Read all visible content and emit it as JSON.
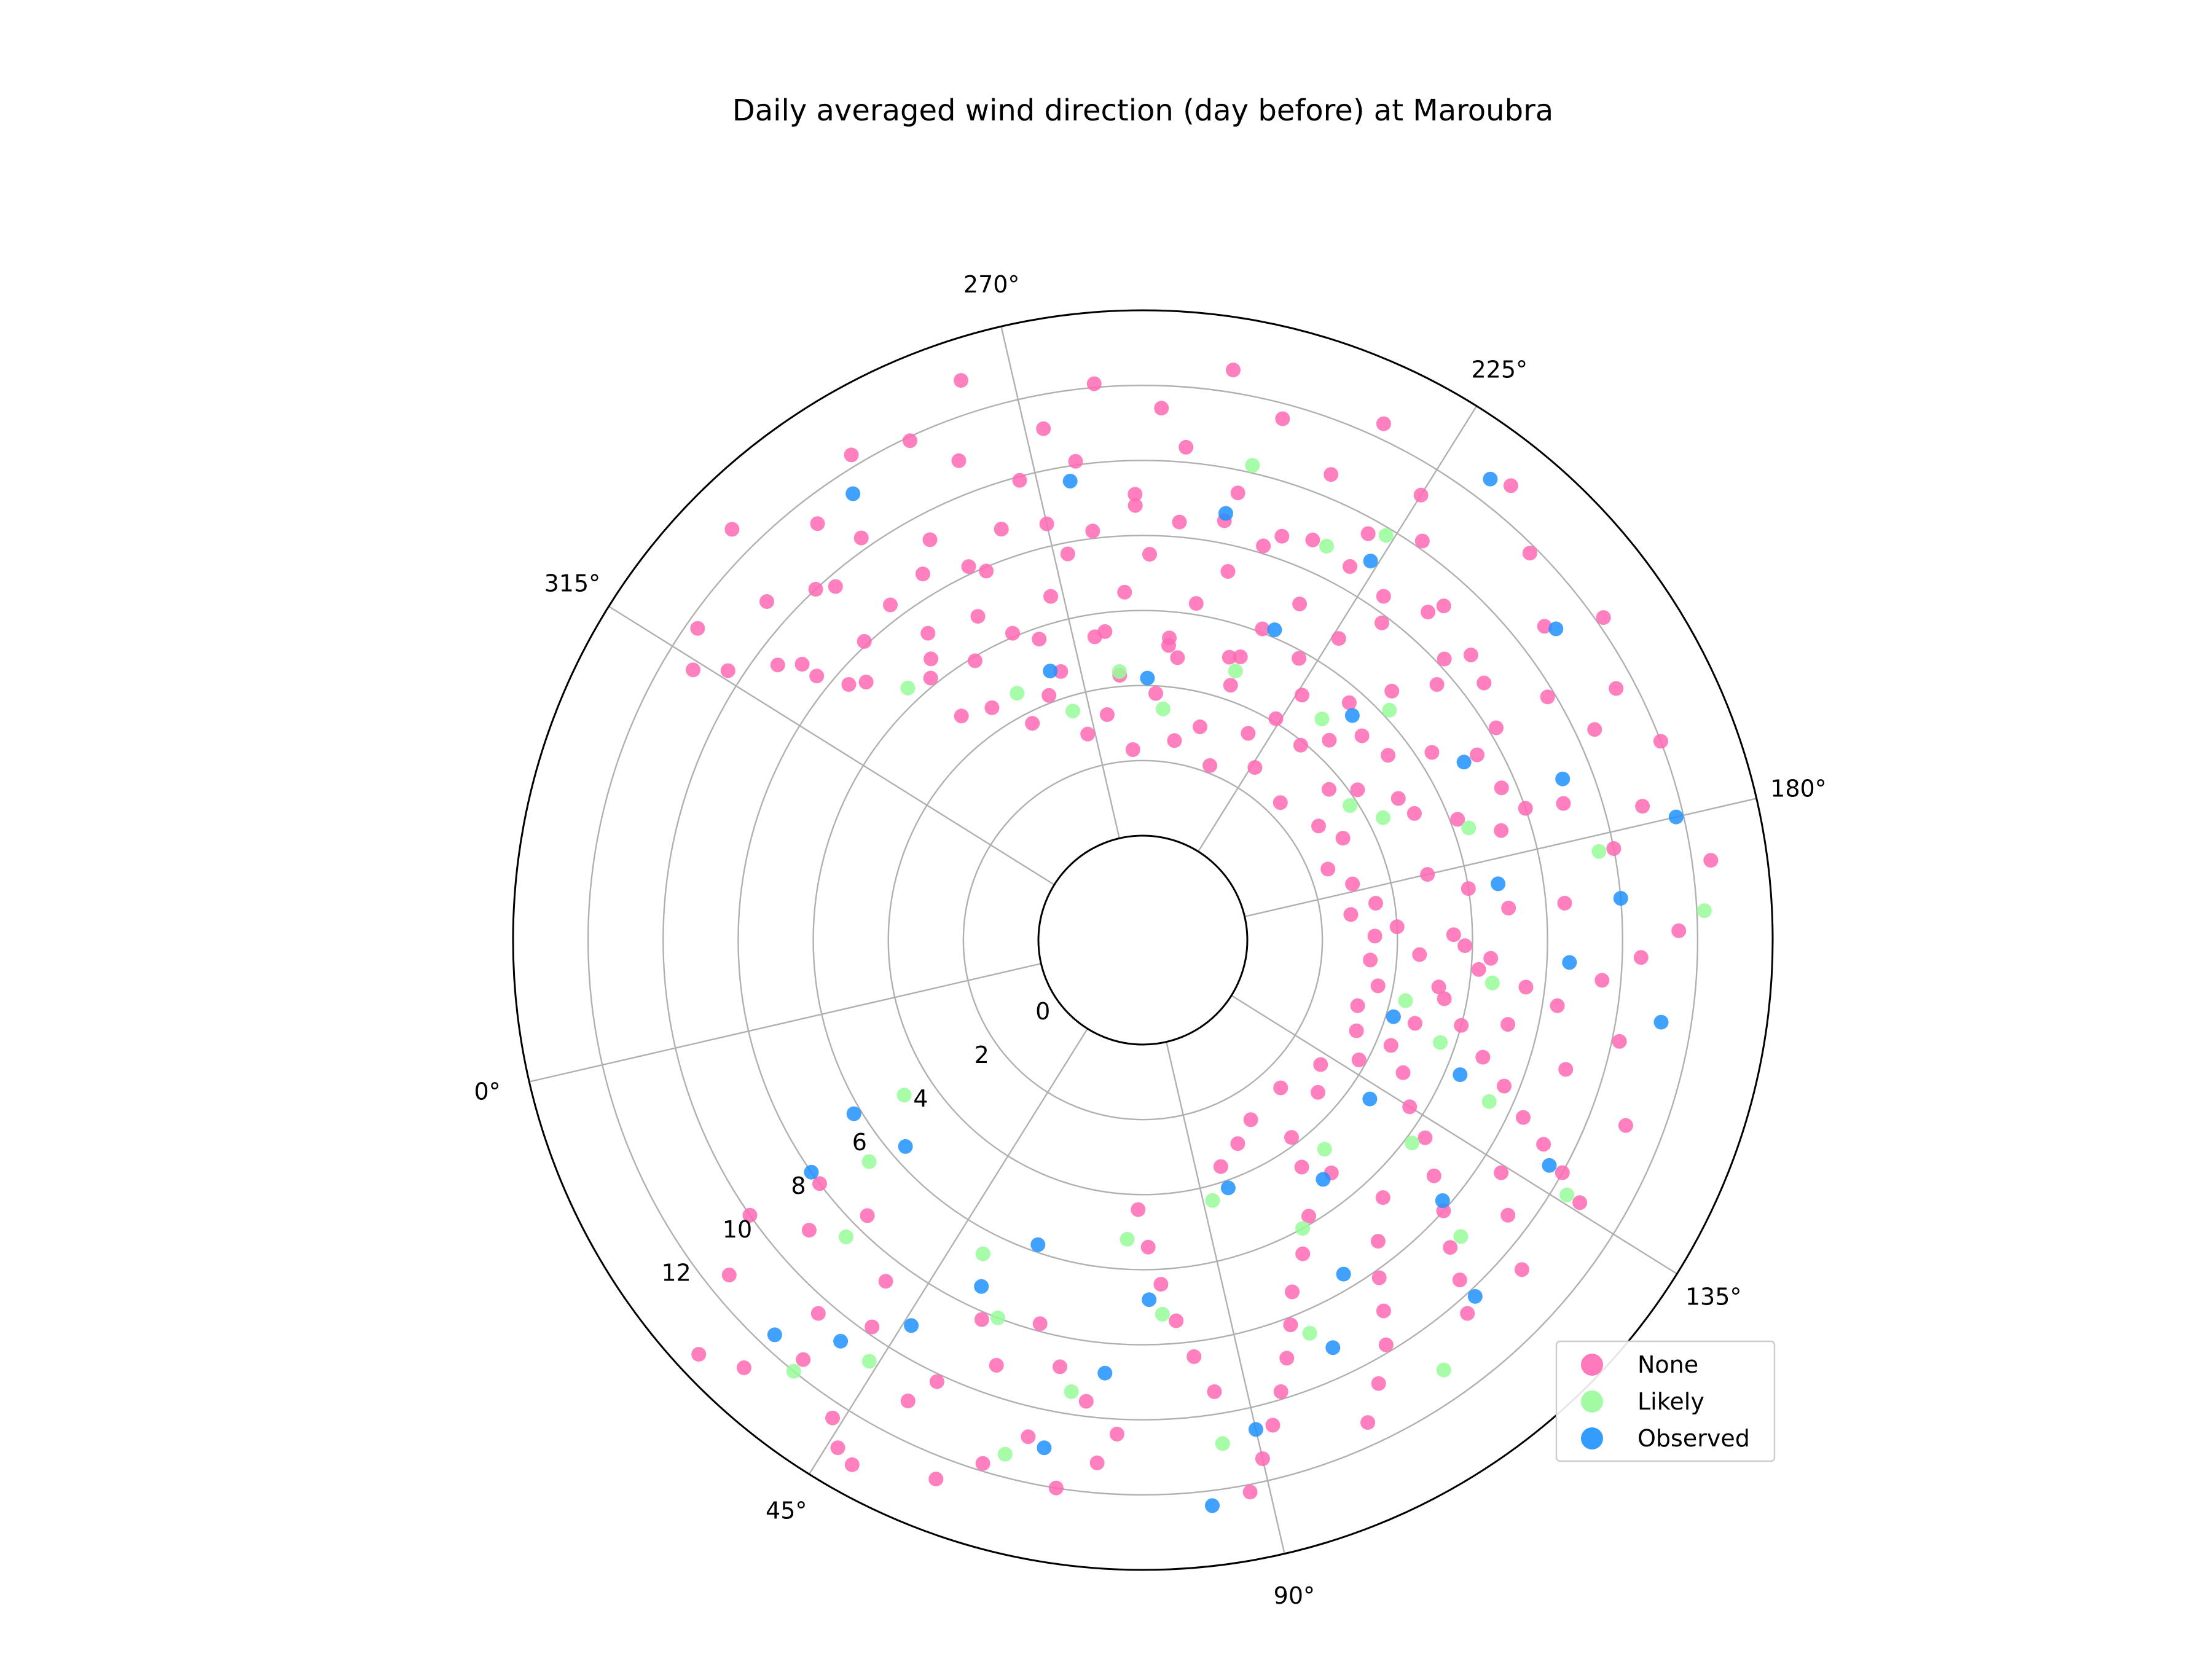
{
  "chart_data": {
    "type": "scatter",
    "projection": "polar",
    "title": "Daily averaged wind direction (day before) at Maroubra",
    "theta_ticks": [
      "0°",
      "45°",
      "90°",
      "135°",
      "180°",
      "225°",
      "270°",
      "315°"
    ],
    "theta_tick_values": [
      0,
      45,
      90,
      135,
      180,
      225,
      270,
      315
    ],
    "theta_zero_screen_angle": 193,
    "theta_direction": "counterclockwise",
    "r_ticks": [
      "0",
      "2",
      "4",
      "6",
      "8",
      "10",
      "12"
    ],
    "r_tick_values": [
      0,
      2,
      4,
      6,
      8,
      10,
      12
    ],
    "r_origin": -2.5,
    "rlim": [
      0,
      14
    ],
    "grid": true,
    "legend_position": "lower-right",
    "series": [
      {
        "name": "None",
        "color": "#ff69b4",
        "points": [
          [
            162,
            9.5
          ],
          [
            165,
            10.5
          ],
          [
            168,
            11.5
          ],
          [
            172,
            8.5
          ],
          [
            175,
            12.5
          ],
          [
            178,
            10
          ],
          [
            182,
            11
          ],
          [
            185,
            9
          ],
          [
            188,
            12
          ],
          [
            192,
            10.5
          ],
          [
            195,
            11.5
          ],
          [
            198,
            9.8
          ],
          [
            202,
            12.2
          ],
          [
            205,
            10.8
          ],
          [
            208,
            8.8
          ],
          [
            212,
            11.8
          ],
          [
            215,
            9.2
          ],
          [
            218,
            12.8
          ],
          [
            222,
            10.2
          ],
          [
            225,
            11.2
          ],
          [
            228,
            9.6
          ],
          [
            232,
            12.4
          ],
          [
            235,
            10.6
          ],
          [
            238,
            8.6
          ],
          [
            242,
            11.6
          ],
          [
            245,
            9.4
          ],
          [
            248,
            12.6
          ],
          [
            252,
            10.4
          ],
          [
            255,
            11.4
          ],
          [
            258,
            9.1
          ],
          [
            262,
            12.1
          ],
          [
            265,
            10.1
          ],
          [
            268,
            11.1
          ],
          [
            272,
            9.9
          ],
          [
            275,
            12.9
          ],
          [
            278,
            10.9
          ],
          [
            282,
            11.9
          ],
          [
            285,
            9.3
          ],
          [
            288,
            12.3
          ],
          [
            292,
            10.3
          ],
          [
            295,
            11.3
          ],
          [
            298,
            9.7
          ],
          [
            302,
            12.7
          ],
          [
            305,
            10.7
          ],
          [
            308,
            8.9
          ],
          [
            312,
            11.7
          ],
          [
            160,
            7.5
          ],
          [
            164,
            6.5
          ],
          [
            168,
            5.5
          ],
          [
            172,
            7
          ],
          [
            176,
            6
          ],
          [
            180,
            5
          ],
          [
            184,
            7.2
          ],
          [
            188,
            6.2
          ],
          [
            192,
            5.2
          ],
          [
            196,
            7.4
          ],
          [
            200,
            6.4
          ],
          [
            204,
            5.4
          ],
          [
            208,
            7.6
          ],
          [
            212,
            6.6
          ],
          [
            216,
            5.6
          ],
          [
            220,
            7.8
          ],
          [
            224,
            6.8
          ],
          [
            228,
            5.8
          ],
          [
            232,
            7.1
          ],
          [
            236,
            6.1
          ],
          [
            240,
            5.1
          ],
          [
            244,
            7.3
          ],
          [
            248,
            6.3
          ],
          [
            252,
            5.3
          ],
          [
            256,
            7.5
          ],
          [
            260,
            6.5
          ],
          [
            264,
            5.5
          ],
          [
            268,
            7.7
          ],
          [
            272,
            6.7
          ],
          [
            276,
            5.7
          ],
          [
            280,
            7.9
          ],
          [
            284,
            6.9
          ],
          [
            288,
            5.9
          ],
          [
            292,
            7.2
          ],
          [
            296,
            6.2
          ],
          [
            300,
            8.1
          ],
          [
            304,
            7.3
          ],
          [
            308,
            8.4
          ],
          [
            176,
            3.5
          ],
          [
            182,
            3
          ],
          [
            188,
            2.5
          ],
          [
            194,
            3.2
          ],
          [
            200,
            2.8
          ],
          [
            206,
            3.6
          ],
          [
            212,
            2.4
          ],
          [
            218,
            3.9
          ],
          [
            224,
            2.7
          ],
          [
            230,
            3.4
          ],
          [
            236,
            2.2
          ],
          [
            242,
            3.1
          ],
          [
            248,
            2.6
          ],
          [
            254,
            3.8
          ],
          [
            260,
            2.3
          ],
          [
            266,
            3.3
          ],
          [
            272,
            2.9
          ],
          [
            278,
            4.2
          ],
          [
            284,
            3.7
          ],
          [
            290,
            4.6
          ],
          [
            296,
            4.9
          ],
          [
            202,
            4.2
          ],
          [
            214,
            4.5
          ],
          [
            226,
            4.1
          ],
          [
            238,
            4.4
          ],
          [
            250,
            4.8
          ],
          [
            262,
            4.3
          ],
          [
            274,
            4.7
          ],
          [
            170,
            4
          ],
          [
            164,
            4.6
          ],
          [
            158,
            5.2
          ],
          [
            152,
            6
          ],
          [
            148,
            6.8
          ],
          [
            145,
            7.6
          ],
          [
            142,
            8.4
          ],
          [
            140,
            9.2
          ],
          [
            138,
            10
          ],
          [
            136,
            10.8
          ],
          [
            150,
            9
          ],
          [
            155,
            10.2
          ],
          [
            146,
            11
          ],
          [
            158,
            8.4
          ],
          [
            154,
            7.2
          ],
          [
            162,
            6.2
          ],
          [
            166,
            5.8
          ],
          [
            156,
            5.4
          ],
          [
            150,
            4.8
          ],
          [
            144,
            4.4
          ],
          [
            140,
            5
          ],
          [
            135,
            5.6
          ],
          [
            132,
            6.4
          ],
          [
            128,
            7.2
          ],
          [
            125,
            8
          ],
          [
            122,
            8.8
          ],
          [
            120,
            9.6
          ],
          [
            118,
            10.4
          ],
          [
            130,
            9.4
          ],
          [
            126,
            10.6
          ],
          [
            134,
            8.6
          ],
          [
            120,
            6.6
          ],
          [
            115,
            7.4
          ],
          [
            112,
            8.2
          ],
          [
            110,
            9
          ],
          [
            108,
            9.8
          ],
          [
            105,
            10.6
          ],
          [
            102,
            11.4
          ],
          [
            116,
            5.2
          ],
          [
            112,
            4.6
          ],
          [
            108,
            5.8
          ],
          [
            104,
            6.6
          ],
          [
            100,
            7.4
          ],
          [
            98,
            8.2
          ],
          [
            96,
            9
          ],
          [
            94,
            9.8
          ],
          [
            92,
            10.6
          ],
          [
            90,
            11.4
          ],
          [
            88,
            12.2
          ],
          [
            86,
            9.4
          ],
          [
            84,
            8.4
          ],
          [
            82,
            7.4
          ],
          [
            80,
            6.4
          ],
          [
            78,
            5.4
          ],
          [
            76,
            4.4
          ],
          [
            74,
            10.4
          ],
          [
            72,
            11.2
          ],
          [
            70,
            9.6
          ],
          [
            68,
            12
          ],
          [
            66,
            8.8
          ],
          [
            64,
            10.8
          ],
          [
            62,
            7.8
          ],
          [
            60,
            11.8
          ],
          [
            58,
            9.2
          ],
          [
            56,
            12.6
          ],
          [
            54,
            8.2
          ],
          [
            52,
            10.2
          ],
          [
            50,
            11
          ],
          [
            48,
            13.2
          ],
          [
            46,
            13
          ],
          [
            44,
            12.4
          ],
          [
            42,
            9.8
          ],
          [
            40,
            8.6
          ],
          [
            38,
            11.6
          ],
          [
            36,
            10.4
          ],
          [
            34,
            12.8
          ],
          [
            32,
            7.6
          ],
          [
            30,
            13.4
          ],
          [
            28,
            9
          ],
          [
            26,
            11.4
          ],
          [
            24,
            8
          ],
          [
            22,
            10
          ],
          [
            96,
            3.6
          ],
          [
            102,
            3.2
          ],
          [
            108,
            2.8
          ],
          [
            114,
            3.8
          ],
          [
            120,
            2.6
          ],
          [
            126,
            3.4
          ],
          [
            132,
            3
          ],
          [
            138,
            3.8
          ],
          [
            144,
            3.4
          ],
          [
            150,
            3.2
          ],
          [
            156,
            3.6
          ],
          [
            162,
            3.3
          ],
          [
            168,
            3.4
          ],
          [
            174,
            2.8
          ],
          [
            196,
            5
          ],
          [
            210,
            5.2
          ],
          [
            224,
            5
          ],
          [
            238,
            5.2
          ],
          [
            252,
            5.1
          ],
          [
            266,
            5.4
          ],
          [
            280,
            6.1
          ],
          [
            294,
            6.6
          ],
          [
            306,
            7.6
          ],
          [
            310,
            9.4
          ],
          [
            314,
            10.4
          ],
          [
            300,
            10
          ],
          [
            316,
            11.2
          ],
          [
            186,
            8
          ],
          [
            190,
            7.6
          ],
          [
            198,
            8.2
          ],
          [
            204,
            8.6
          ],
          [
            210,
            8.2
          ],
          [
            216,
            8.8
          ],
          [
            222,
            8.4
          ],
          [
            228,
            8.6
          ],
          [
            234,
            8.8
          ],
          [
            240,
            8.2
          ],
          [
            246,
            8.6
          ],
          [
            252,
            8.4
          ],
          [
            258,
            8.8
          ],
          [
            264,
            8.2
          ],
          [
            270,
            8.6
          ],
          [
            276,
            8.8
          ],
          [
            282,
            8.2
          ],
          [
            288,
            8.6
          ],
          [
            294,
            8.4
          ]
        ]
      },
      {
        "name": "Likely",
        "color": "#98fb98",
        "points": [
          [
            170,
            12.2
          ],
          [
            178,
            9.6
          ],
          [
            186,
            6.4
          ],
          [
            194,
            4.4
          ],
          [
            200,
            3.8
          ],
          [
            210,
            6.2
          ],
          [
            218,
            4.8
          ],
          [
            226,
            9.8
          ],
          [
            232,
            8.8
          ],
          [
            238,
            4.8
          ],
          [
            244,
            10.2
          ],
          [
            252,
            3.4
          ],
          [
            262,
            4.4
          ],
          [
            274,
            3.6
          ],
          [
            284,
            4.6
          ],
          [
            300,
            6.4
          ],
          [
            160,
            6.6
          ],
          [
            154,
            4.4
          ],
          [
            148,
            5.6
          ],
          [
            142,
            7.4
          ],
          [
            136,
            10.4
          ],
          [
            130,
            6.2
          ],
          [
            124,
            8.8
          ],
          [
            118,
            4.6
          ],
          [
            112,
            11.2
          ],
          [
            106,
            6
          ],
          [
            100,
            8.6
          ],
          [
            92,
            4.4
          ],
          [
            86,
            10.8
          ],
          [
            80,
            7.2
          ],
          [
            74,
            5.2
          ],
          [
            68,
            9.4
          ],
          [
            62,
            11.4
          ],
          [
            56,
            8
          ],
          [
            50,
            6.6
          ],
          [
            44,
            10.6
          ],
          [
            38,
            12
          ],
          [
            32,
            8.4
          ],
          [
            26,
            6.6
          ],
          [
            20,
            4.8
          ]
        ]
      },
      {
        "name": "Observed",
        "color": "#1e90ff",
        "points": [
          [
            172,
            10
          ],
          [
            180,
            11.8
          ],
          [
            188,
            9.2
          ],
          [
            196,
            7
          ],
          [
            204,
            11
          ],
          [
            214,
            5.4
          ],
          [
            220,
            12.6
          ],
          [
            226,
            9
          ],
          [
            234,
            6.2
          ],
          [
            246,
            8.8
          ],
          [
            256,
            4.2
          ],
          [
            266,
            9.6
          ],
          [
            276,
            4.8
          ],
          [
            290,
            11.4
          ],
          [
            176,
            6.8
          ],
          [
            164,
            8.6
          ],
          [
            158,
            11.2
          ],
          [
            150,
            4.2
          ],
          [
            144,
            6.4
          ],
          [
            138,
            9.6
          ],
          [
            132,
            4.6
          ],
          [
            126,
            7.8
          ],
          [
            120,
            10.2
          ],
          [
            114,
            5.2
          ],
          [
            108,
            7.6
          ],
          [
            102,
            9.2
          ],
          [
            96,
            4.2
          ],
          [
            90,
            10.6
          ],
          [
            84,
            12.4
          ],
          [
            78,
            6.8
          ],
          [
            72,
            8.8
          ],
          [
            66,
            11
          ],
          [
            58,
            5.8
          ],
          [
            52,
            7.4
          ],
          [
            46,
            9.2
          ],
          [
            40,
            10.6
          ],
          [
            34,
            11.6
          ],
          [
            28,
            5.6
          ],
          [
            22,
            8
          ],
          [
            18,
            6.2
          ]
        ]
      }
    ]
  }
}
